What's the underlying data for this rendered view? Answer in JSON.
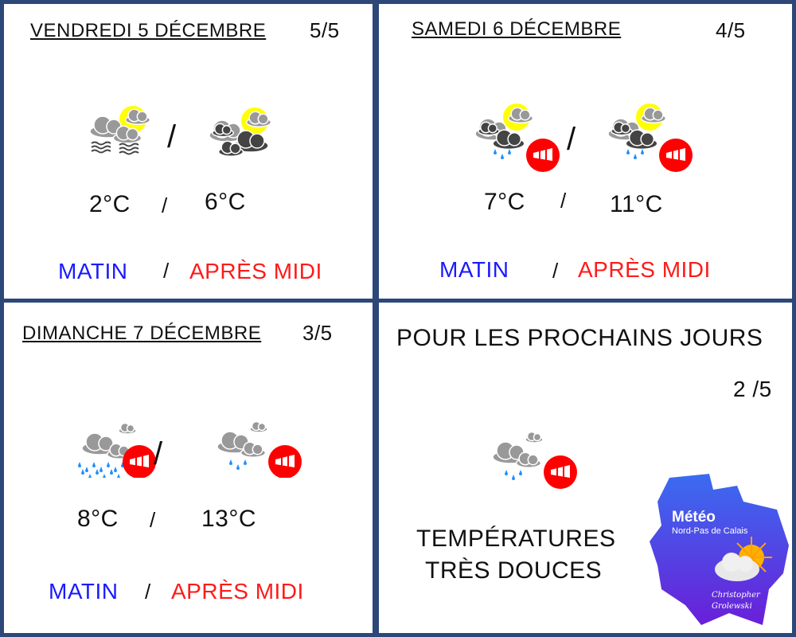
{
  "days": [
    {
      "title": "Vendredi 5 décembre",
      "score": "5/5",
      "icon_morning": "fog-sun-cloud-icon",
      "icon_afternoon": "sun-dark-cloud-icon",
      "temp_morning": "2°C",
      "temp_afternoon": "6°C",
      "sep": "/",
      "morning_label": "MATIN",
      "afternoon_label": "APRÈS MIDI"
    },
    {
      "title": "Samedi 6 décembre",
      "score": "4/5",
      "icon_morning": "sun-rain-wind-icon",
      "icon_afternoon": "sun-rain-wind-icon",
      "temp_morning": "7°C",
      "temp_afternoon": "11°C",
      "sep": "/",
      "morning_label": "MATIN",
      "afternoon_label": "APRÈS MIDI"
    },
    {
      "title": "Dimanche 7 décembre",
      "score": "3/5",
      "icon_morning": "heavy-rain-wind-icon",
      "icon_afternoon": "rain-wind-icon",
      "temp_morning": "8°C",
      "temp_afternoon": "13°C",
      "sep": "/",
      "morning_label": "MATIN",
      "afternoon_label": "APRÈS MIDI"
    }
  ],
  "outlook": {
    "title": "POUR LES PROCHAINS JOURS",
    "score": "2 /5",
    "icon": "rain-wind-icon",
    "text_line1": "TEMPÉRATURES",
    "text_line2": "TRÈS DOUCES"
  },
  "logo": {
    "line1": "Météo",
    "line2": "Nord-Pas de Calais",
    "author1": "Christopher",
    "author2": "Grolewski"
  },
  "colors": {
    "border": "#2c4778",
    "morning": "#1a1aff",
    "afternoon": "#ff1a1a",
    "wind_badge": "#ff0000",
    "sun": "#ffff00"
  }
}
